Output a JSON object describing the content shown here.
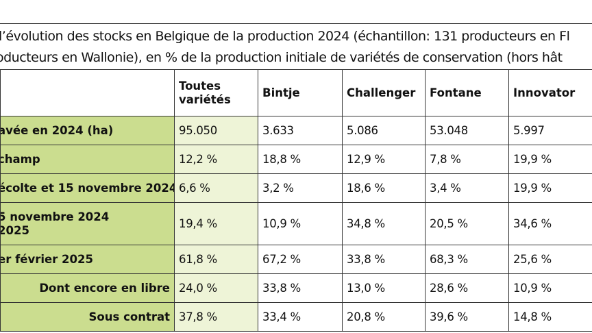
{
  "title": {
    "line1": "l’évolution des stocks en Belgique de la production 2024 (échantillon: 131 producteurs en Fl",
    "line2": "oducteurs en Wallonie), en % de la production initiale de variétés de conservation (hors hât"
  },
  "table": {
    "headers": [
      "",
      "Toutes variétés",
      "Bintje",
      "Challenger",
      "Fontane",
      "Innovator"
    ],
    "header_first_lines": [
      "Toutes",
      "variétés"
    ],
    "rows": [
      {
        "label": "avée en 2024 (ha)",
        "values": [
          "95.050",
          "3.633",
          "5.086",
          "53.048",
          "5.997"
        ]
      },
      {
        "label": "champ",
        "values": [
          "12,2 %",
          "18,8 %",
          "12,9 %",
          "7,8 %",
          "19,9 %"
        ]
      },
      {
        "label": "écolte et 15 novembre 2024",
        "values": [
          "6,6 %",
          "3,2 %",
          "18,6 %",
          "3,4 %",
          "19,9 %"
        ]
      },
      {
        "label_line1": "5 novembre 2024",
        "label_line2": "2025",
        "values": [
          "19,4 %",
          "10,9 %",
          "34,8 %",
          "20,5 %",
          "34,6 %"
        ]
      },
      {
        "label": "er février 2025",
        "values": [
          "61,8 %",
          "67,2 %",
          "33,8 %",
          "68,3 %",
          "25,6 %"
        ]
      },
      {
        "label": "Dont encore en libre",
        "values": [
          "24,0 %",
          "33,8 %",
          "13,0 %",
          "28,6 %",
          "10,9 %"
        ]
      },
      {
        "label": "Sous contrat",
        "values": [
          "37,8 %",
          "33,4 %",
          "20,8 %",
          "39,6 %",
          "14,8 %"
        ]
      }
    ]
  },
  "colors": {
    "label_bg": "#cbdd8f",
    "first_col_bg": "#eef4d7",
    "border": "#333333"
  }
}
